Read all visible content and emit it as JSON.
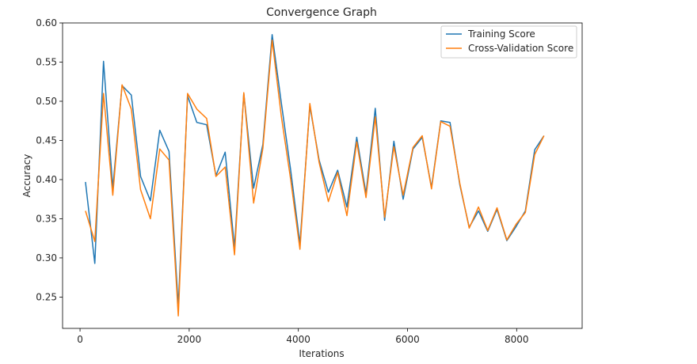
{
  "chart_data": {
    "type": "line",
    "title": "Convergence Graph",
    "xlabel": "Iterations",
    "ylabel": "Accuracy",
    "xlim": [
      -320,
      9200
    ],
    "ylim": [
      0.21,
      0.6
    ],
    "xticks": [
      0,
      2000,
      4000,
      6000,
      8000
    ],
    "yticks": [
      0.25,
      0.3,
      0.35,
      0.4,
      0.45,
      0.5,
      0.55,
      0.6
    ],
    "ytick_labels": [
      "0.25",
      "0.30",
      "0.35",
      "0.40",
      "0.45",
      "0.50",
      "0.55",
      "0.60"
    ],
    "grid": false,
    "legend_position": "top-right",
    "x": [
      100,
      270,
      430,
      600,
      770,
      940,
      1110,
      1290,
      1460,
      1630,
      1800,
      1970,
      2140,
      2320,
      2490,
      2660,
      2830,
      3000,
      3180,
      3350,
      3520,
      3690,
      3860,
      4030,
      4210,
      4380,
      4550,
      4720,
      4890,
      5070,
      5240,
      5410,
      5580,
      5750,
      5920,
      6100,
      6270,
      6440,
      6610,
      6780,
      6960,
      7130,
      7300,
      7470,
      7640,
      7820,
      7990,
      8160,
      8330,
      8500
    ],
    "series": [
      {
        "name": "Training Score",
        "color": "#1f77b4",
        "values": [
          0.397,
          0.293,
          0.551,
          0.389,
          0.52,
          0.508,
          0.404,
          0.373,
          0.463,
          0.436,
          0.238,
          0.507,
          0.473,
          0.47,
          0.405,
          0.435,
          0.313,
          0.51,
          0.389,
          0.445,
          0.585,
          0.497,
          0.412,
          0.318,
          0.494,
          0.425,
          0.384,
          0.412,
          0.365,
          0.454,
          0.382,
          0.491,
          0.348,
          0.449,
          0.375,
          0.439,
          0.454,
          0.39,
          0.475,
          0.473,
          0.393,
          0.339,
          0.36,
          0.334,
          0.362,
          0.322,
          0.34,
          0.36,
          0.438,
          0.456
        ]
      },
      {
        "name": "Cross-Validation Score",
        "color": "#ff7f0e",
        "values": [
          0.36,
          0.321,
          0.51,
          0.38,
          0.521,
          0.49,
          0.387,
          0.35,
          0.439,
          0.425,
          0.226,
          0.51,
          0.49,
          0.478,
          0.404,
          0.416,
          0.304,
          0.511,
          0.37,
          0.44,
          0.578,
          0.48,
          0.4,
          0.311,
          0.497,
          0.422,
          0.372,
          0.409,
          0.354,
          0.448,
          0.377,
          0.48,
          0.352,
          0.442,
          0.38,
          0.441,
          0.456,
          0.388,
          0.474,
          0.468,
          0.395,
          0.338,
          0.365,
          0.335,
          0.364,
          0.323,
          0.343,
          0.358,
          0.432,
          0.456
        ]
      }
    ]
  }
}
